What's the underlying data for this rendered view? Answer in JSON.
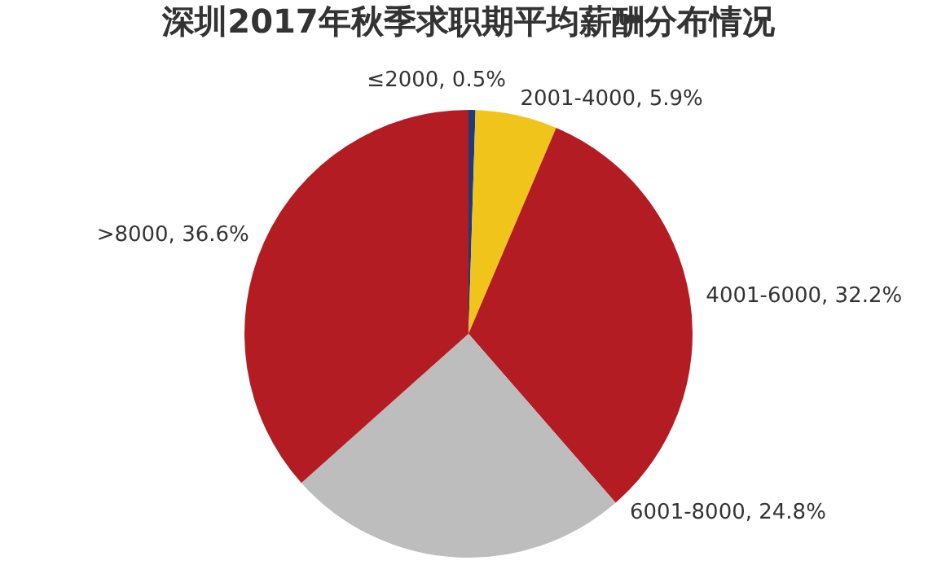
{
  "chart_data": {
    "type": "pie",
    "title": "深圳2017年秋季求职期平均薪酬分布情况",
    "categories": [
      "≤2000",
      "2001-4000",
      "4001-6000",
      "6001-8000",
      ">8000"
    ],
    "values": [
      0.5,
      5.9,
      32.2,
      24.8,
      36.6
    ],
    "value_labels": [
      "0.5%",
      "5.9%",
      "32.2%",
      "24.8%",
      "36.6%"
    ],
    "colors": [
      "#1f3c78",
      "#f0c41b",
      "#b41c24",
      "#bdbdbd",
      "#b41c24"
    ],
    "legend": false
  }
}
